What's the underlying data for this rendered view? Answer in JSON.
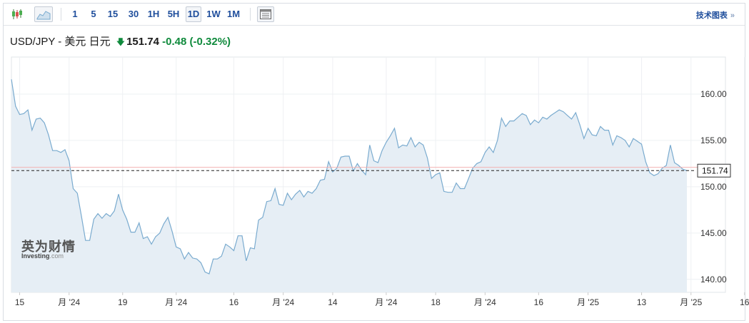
{
  "toolbar": {
    "timeframes": [
      "1",
      "5",
      "15",
      "30",
      "1H",
      "5H",
      "1D",
      "1W",
      "1M"
    ],
    "selected": "1D",
    "tech_chart_label": "技术图表",
    "chevron": "»",
    "icons": [
      "candlestick-icon",
      "area-chart-icon",
      "table-icon"
    ]
  },
  "header": {
    "pair": "USD/JPY - 美元 日元",
    "price": "151.74",
    "change": "-0.48",
    "change_pct": "(-0.32%)",
    "direction_icon": "down-arrow-icon",
    "change_color": "#0f8a3c"
  },
  "watermark": {
    "cn": "英为财情",
    "en_main": "Investing",
    "en_suffix": ".com"
  },
  "chart_data": {
    "type": "area",
    "series": [
      {
        "values": [
          161.6,
          158.7,
          157.8,
          157.9,
          158.3,
          156.1,
          157.3,
          157.4,
          156.9,
          155.6,
          153.9,
          153.9,
          153.7,
          154.0,
          152.8,
          149.8,
          149.3,
          146.8,
          144.2,
          144.2,
          146.5,
          147.1,
          146.6,
          147.1,
          146.8,
          147.4,
          149.2,
          147.5,
          146.5,
          145.1,
          145.1,
          146.1,
          144.4,
          144.6,
          143.8,
          144.6,
          145.0,
          146.0,
          146.7,
          145.2,
          143.5,
          143.3,
          142.2,
          142.9,
          142.3,
          142.2,
          141.8,
          140.8,
          140.6,
          142.2,
          142.2,
          142.5,
          143.8,
          143.5,
          143.1,
          144.7,
          144.7,
          142.0,
          143.4,
          143.3,
          146.4,
          146.7,
          148.4,
          148.5,
          149.8,
          148.1,
          148.0,
          149.3,
          148.6,
          149.2,
          149.6,
          148.9,
          149.5,
          149.3,
          149.8,
          150.7,
          150.8,
          152.7,
          151.6,
          152.0,
          153.2,
          153.3,
          153.3,
          151.7,
          152.5,
          151.8,
          151.3,
          154.5,
          152.8,
          152.6,
          153.9,
          154.8,
          155.5,
          156.3,
          154.2,
          154.5,
          154.4,
          155.3,
          154.3,
          154.8,
          154.5,
          153.1,
          150.9,
          151.3,
          151.5,
          149.5,
          149.4,
          149.4,
          150.4,
          149.8,
          149.8,
          150.9,
          152.0,
          152.5,
          152.7,
          153.7,
          154.3,
          153.7,
          155.0,
          157.4,
          156.5,
          157.1,
          157.1,
          157.5,
          157.9,
          157.7,
          156.7,
          157.2,
          156.9,
          157.5,
          157.3,
          157.7,
          158.0,
          158.3,
          158.1,
          157.7,
          157.3,
          158.0,
          156.7,
          155.2,
          156.3,
          155.6,
          155.5,
          156.5,
          156.1,
          156.1,
          154.5,
          155.5,
          155.3,
          155.0,
          154.3,
          155.2,
          154.9,
          154.6,
          152.7,
          151.5,
          151.2,
          151.4,
          152.0,
          152.3,
          154.5,
          152.6,
          152.3,
          151.9,
          151.74
        ]
      }
    ],
    "x_labels": [
      "15",
      "月 '24",
      "19",
      "月 '24",
      "16",
      "月 '24",
      "14",
      "月 '24",
      "18",
      "月 '24",
      "16",
      "月 '25",
      "13",
      "月 '25",
      "16"
    ],
    "x_label_index": [
      2,
      14,
      27,
      40,
      54,
      66,
      78,
      91,
      103,
      115,
      128,
      140,
      153,
      165,
      178
    ],
    "y_ticks": [
      "160.00",
      "155.00",
      "150.00",
      "145.00",
      "140.00"
    ],
    "ylim": [
      138.6,
      164.0
    ],
    "last_value": "151.74",
    "reference_line": 152.1,
    "line_color": "#7aabcf",
    "fill_color": "#e6eef5",
    "grid": true
  }
}
